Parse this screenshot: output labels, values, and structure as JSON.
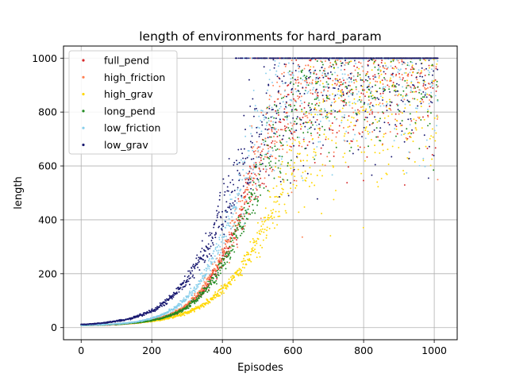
{
  "chart_data": {
    "type": "scatter",
    "title": "length of environments for hard_param",
    "xlabel": "Episodes",
    "ylabel": "length",
    "xlim": [
      -50,
      1065
    ],
    "ylim": [
      -45,
      1045
    ],
    "xticks": [
      0,
      200,
      400,
      600,
      800,
      1000
    ],
    "yticks": [
      0,
      200,
      400,
      600,
      800,
      1000
    ],
    "grid": true,
    "legend_position": "upper-left",
    "cap": 1000,
    "episodes": 1010,
    "series": [
      {
        "name": "full_pend",
        "color": "#d62728",
        "midpoint": 470,
        "rate": 0.0148,
        "plateau": 930,
        "spread": 0.1
      },
      {
        "name": "high_friction",
        "color": "#ff7f50",
        "midpoint": 465,
        "rate": 0.0148,
        "plateau": 950,
        "spread": 0.1
      },
      {
        "name": "high_grav",
        "color": "#ffd700",
        "midpoint": 555,
        "rate": 0.0115,
        "plateau": 900,
        "spread": 0.12
      },
      {
        "name": "long_pend",
        "color": "#228b22",
        "midpoint": 485,
        "rate": 0.014,
        "plateau": 950,
        "spread": 0.1
      },
      {
        "name": "low_friction",
        "color": "#87ceeb",
        "midpoint": 445,
        "rate": 0.0148,
        "plateau": 960,
        "spread": 0.1
      },
      {
        "name": "low_grav",
        "color": "#191970",
        "midpoint": 420,
        "rate": 0.0128,
        "plateau": 955,
        "spread": 0.12
      }
    ]
  }
}
